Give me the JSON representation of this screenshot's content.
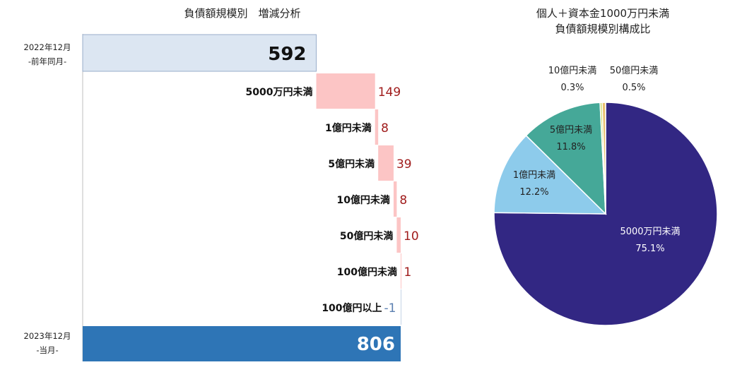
{
  "chart_data": [
    {
      "type": "bar",
      "subtype": "waterfall",
      "title": "負債額規模別　増減分析",
      "start": {
        "label_line1": "2022年12月",
        "label_line2": "-前年同月-",
        "value": 592,
        "value_text": "592"
      },
      "steps": [
        {
          "label": "5000万円未満",
          "value": 149,
          "value_text": "149"
        },
        {
          "label": "1億円未満",
          "value": 8,
          "value_text": "8"
        },
        {
          "label": "5億円未満",
          "value": 39,
          "value_text": "39"
        },
        {
          "label": "10億円未満",
          "value": 8,
          "value_text": "8"
        },
        {
          "label": "50億円未満",
          "value": 10,
          "value_text": "10"
        },
        {
          "label": "100億円未満",
          "value": 1,
          "value_text": "1"
        },
        {
          "label": "100億円以上",
          "value": -1,
          "value_text": "-1"
        }
      ],
      "end": {
        "label_line1": "2023年12月",
        "label_line2": "-当月-",
        "value": 806,
        "value_text": "806"
      },
      "colors": {
        "start": "#dce6f2",
        "increase": "#fcc5c5",
        "decrease": "#c5d4e6",
        "end": "#2e75b6",
        "increase_text": "#a01c1c",
        "decrease_text": "#5b7fb0"
      }
    },
    {
      "type": "pie",
      "title_line1": "個人＋資本金1000万円未満",
      "title_line2": "負債額規模別構成比",
      "slices": [
        {
          "label": "5000万円未満",
          "value": 75.1,
          "value_text": "75.1%",
          "color": "#322783",
          "text_color": "#ffffff"
        },
        {
          "label": "1億円未満",
          "value": 12.2,
          "value_text": "12.2%",
          "color": "#8dcbeb",
          "text_color": "#222222"
        },
        {
          "label": "5億円未満",
          "value": 11.8,
          "value_text": "11.8%",
          "color": "#45a898",
          "text_color": "#222222"
        },
        {
          "label": "10億円未満",
          "value": 0.3,
          "value_text": "0.3%",
          "color": "#c8d860",
          "text_color": "#222222"
        },
        {
          "label": "50億円未満",
          "value": 0.5,
          "value_text": "0.5%",
          "color": "#e8c070",
          "text_color": "#222222"
        }
      ]
    }
  ]
}
